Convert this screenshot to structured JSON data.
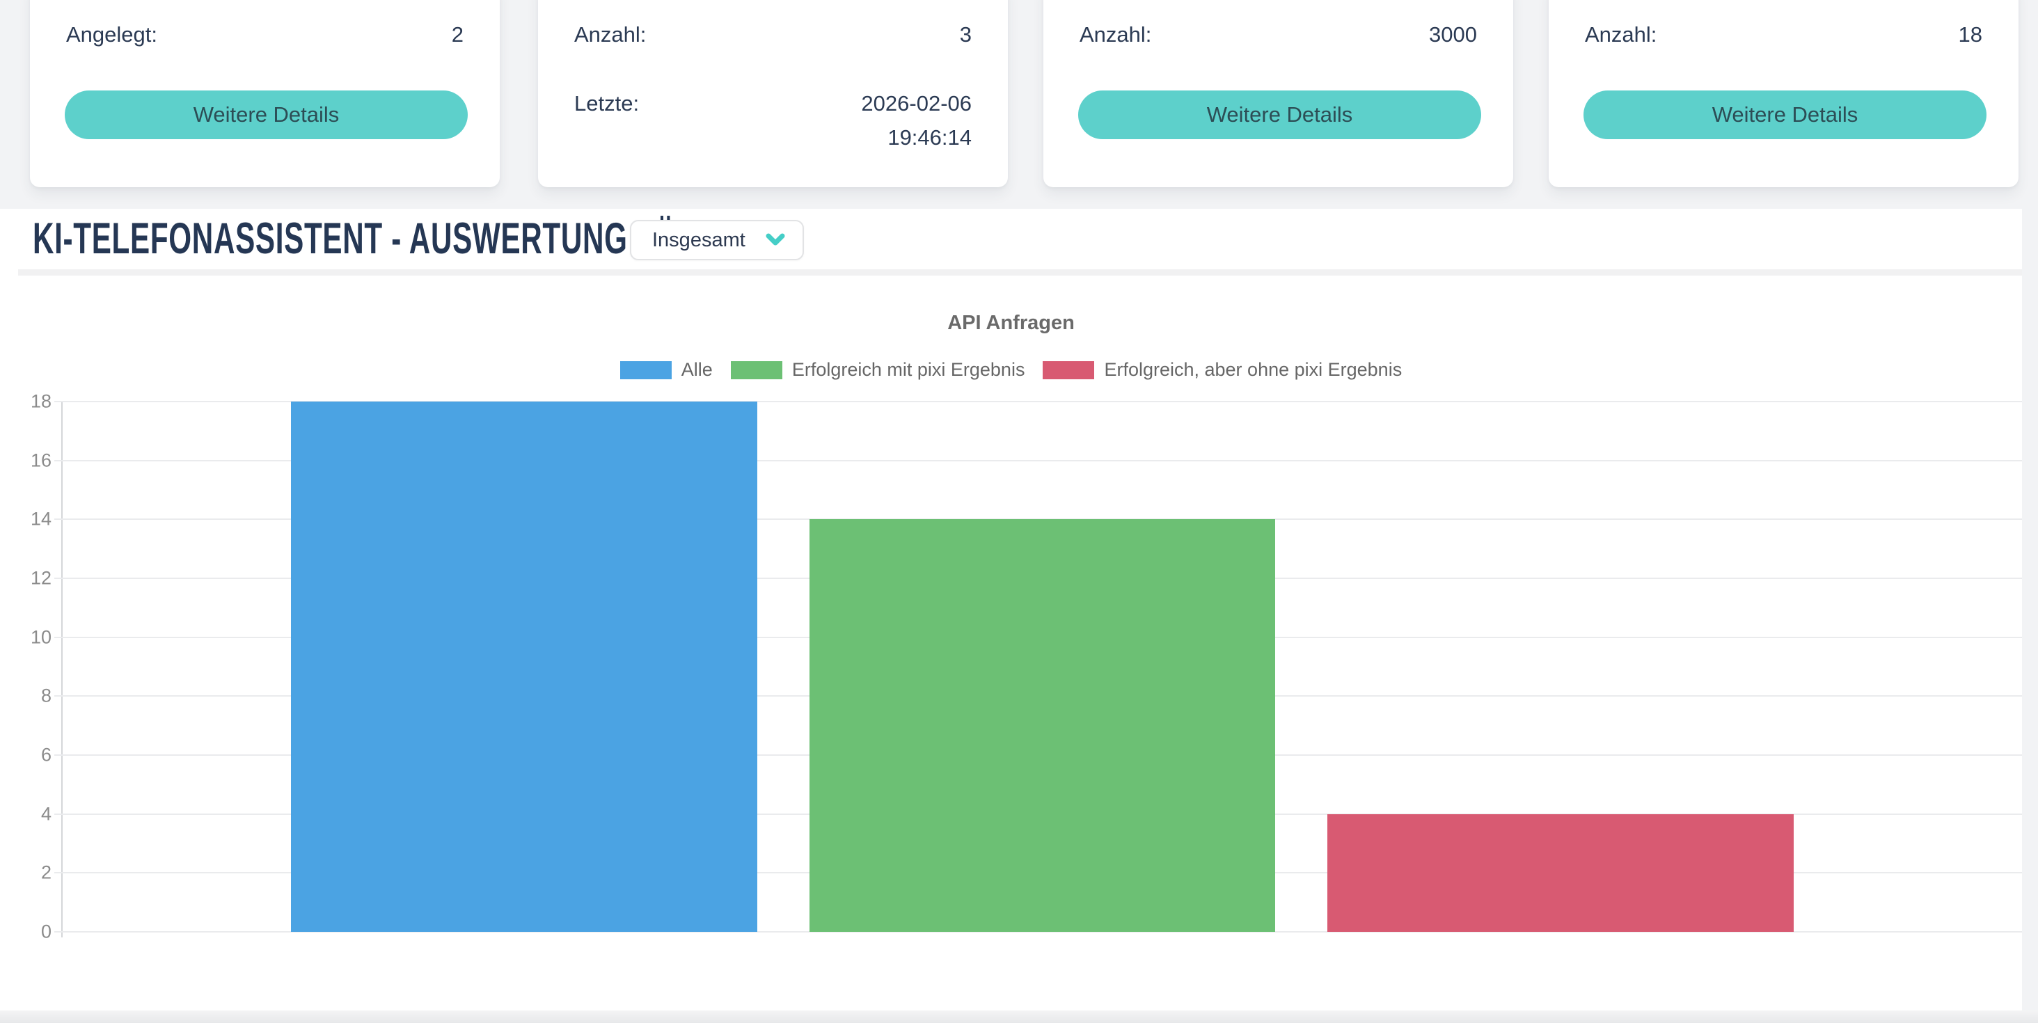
{
  "page": {
    "background": "#f2f3f5"
  },
  "cards": [
    {
      "label": "Angelegt:",
      "value": "2",
      "button_label": "Weitere Details"
    },
    {
      "label": "Anzahl:",
      "value": "3",
      "row2_label": "Letzte:",
      "row2_date": "2026-02-06",
      "row2_time": "19:46:14"
    },
    {
      "label": "Anzahl:",
      "value": "3000",
      "button_label": "Weitere Details"
    },
    {
      "label": "Anzahl:",
      "value": "18",
      "button_label": "Weitere Details"
    }
  ],
  "section": {
    "title": "KI-TELEFONASSISTENT - AUSWERTUNG FÜR",
    "filter_dropdown": {
      "selected": "Insgesamt",
      "icon": "chevron-down-icon",
      "icon_color": "#45cec7"
    }
  },
  "chart_data": {
    "type": "bar",
    "title": "API Anfragen",
    "categories": [
      ""
    ],
    "series": [
      {
        "name": "Alle",
        "values": [
          18
        ],
        "color": "#4ba3e3"
      },
      {
        "name": "Erfolgreich mit pixi Ergebnis",
        "values": [
          14
        ],
        "color": "#6cc074"
      },
      {
        "name": "Erfolgreich, aber ohne pixi Ergebnis",
        "values": [
          4
        ],
        "color": "#d85a72"
      }
    ],
    "xlabel": "",
    "ylabel": "",
    "ylim": [
      0,
      18
    ],
    "ytick_step": 2,
    "grid": true,
    "legend_position": "top"
  },
  "theme": {
    "accent_teal": "#5dd0cb",
    "button_text": "#2c4d55",
    "heading_navy": "#253754"
  }
}
